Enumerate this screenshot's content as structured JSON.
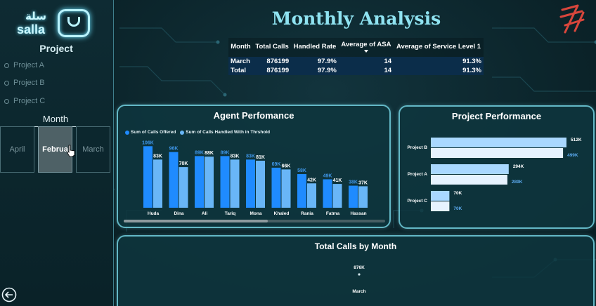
{
  "title": "Monthly Analysis",
  "logo": {
    "arabic": "سلة",
    "latin": "salla"
  },
  "sidebar": {
    "project_heading": "Project",
    "projects": [
      "Project A",
      "Project B",
      "Project C"
    ],
    "month_heading": "Month",
    "months": [
      "April",
      "Februa",
      "March"
    ],
    "active_month_index": 1
  },
  "summary_table": {
    "columns": [
      "Month",
      "Total Calls",
      "Handled Rate",
      "Average of ASA",
      "Average of Service Level 1"
    ],
    "rows": [
      [
        "March",
        "876199",
        "97.9%",
        "14",
        "91.3%"
      ],
      [
        "Total",
        "876199",
        "97.9%",
        "14",
        "91.3%"
      ]
    ]
  },
  "agent_panel": {
    "title": "Agent Perfomance",
    "scroll_position": 0.55
  },
  "project_panel": {
    "title": "Project Performance"
  },
  "month_panel": {
    "title": "Total Calls by Month"
  },
  "colors": {
    "offered": "#1f8bff",
    "handled": "#69b6f7",
    "project_offered": "#a9d8ff",
    "project_handled": "#e6f3ff",
    "accent": "#8fe3f1"
  },
  "chart_data": [
    {
      "type": "bar",
      "title": "Agent Perfomance",
      "categories": [
        "Huda",
        "Dina",
        "Ali",
        "Tariq",
        "Mona",
        "Khaled",
        "Rania",
        "Fatma",
        "Hassan"
      ],
      "series": [
        {
          "name": "Sum of Calls Offered",
          "values": [
            106,
            96,
            89,
            89,
            83,
            69,
            58,
            49,
            38
          ],
          "labels": [
            "106K",
            "96K",
            "89K",
            "89K",
            "83K",
            "69K",
            "58K",
            "49K",
            "38K"
          ]
        },
        {
          "name": "Sum of Calls Handled With in Thrshold",
          "values": [
            83,
            70,
            88,
            83,
            81,
            66,
            42,
            41,
            37
          ],
          "labels": [
            "83K",
            "70K",
            "88K",
            "83K",
            "81K",
            "66K",
            "42K",
            "41K",
            "37K"
          ]
        }
      ],
      "ylim": [
        0,
        110
      ],
      "legend": "top-left",
      "grid": false
    },
    {
      "type": "bar",
      "orientation": "horizontal",
      "title": "Project Performance",
      "categories": [
        "Project B",
        "Project A",
        "Project C"
      ],
      "series": [
        {
          "values": [
            512,
            294,
            70
          ],
          "labels": [
            "512K",
            "294K",
            "70K"
          ]
        },
        {
          "values": [
            499,
            289,
            70
          ],
          "labels": [
            "499K",
            "289K",
            "70K"
          ]
        }
      ],
      "xlim": [
        0,
        520
      ],
      "grid": false
    },
    {
      "type": "scatter",
      "title": "Total Calls by Month",
      "categories": [
        "March"
      ],
      "values": [
        876
      ],
      "labels": [
        "876K"
      ],
      "grid": false
    }
  ]
}
